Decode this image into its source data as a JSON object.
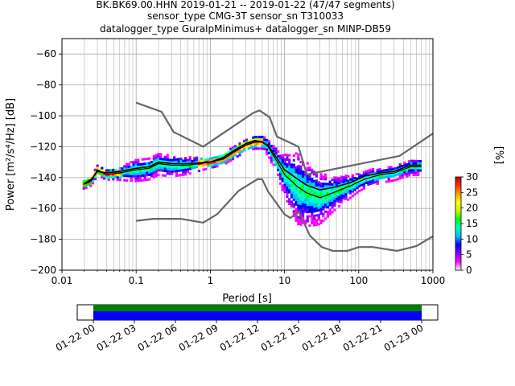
{
  "header": {
    "line1": "BK.BK69.00.HHN   2019-01-21 -- 2019-01-22  (47/47 segments)",
    "line2": "sensor_type CMG-3T sensor_sn T310033",
    "line3": "datalogger_type GuralpMinimus+ datalogger_sn MINP-DB59"
  },
  "chart_data": {
    "type": "heatmap",
    "title": "",
    "xlabel": "Period [s]",
    "ylabel": "Power [m²/s⁴/Hz] [dB]",
    "xscale": "log",
    "xlim": [
      0.01,
      1000
    ],
    "ylim": [
      -200,
      -50
    ],
    "x_ticks": [
      {
        "value": 0.01,
        "label": "0.01"
      },
      {
        "value": 0.1,
        "label": "0.1"
      },
      {
        "value": 1,
        "label": "1"
      },
      {
        "value": 10,
        "label": "10"
      },
      {
        "value": 100,
        "label": "100"
      },
      {
        "value": 1000,
        "label": "1000"
      }
    ],
    "y_ticks": [
      {
        "value": -60,
        "label": "−60"
      },
      {
        "value": -80,
        "label": "−80"
      },
      {
        "value": -100,
        "label": "−100"
      },
      {
        "value": -120,
        "label": "−120"
      },
      {
        "value": -140,
        "label": "−140"
      },
      {
        "value": -160,
        "label": "−160"
      },
      {
        "value": -180,
        "label": "−180"
      },
      {
        "value": -200,
        "label": "−200"
      }
    ],
    "grid": true,
    "noise_models": {
      "color": "#666666",
      "high": [
        [
          0.1,
          -91.5
        ],
        [
          0.22,
          -97.4
        ],
        [
          0.32,
          -110.5
        ],
        [
          0.8,
          -120
        ],
        [
          3.8,
          -98
        ],
        [
          4.6,
          -96.5
        ],
        [
          6.3,
          -101
        ],
        [
          7.9,
          -113.5
        ],
        [
          15.4,
          -120
        ],
        [
          20,
          -138
        ],
        [
          354.8,
          -126
        ],
        [
          1000,
          -111.5
        ]
      ],
      "low": [
        [
          0.1,
          -168
        ],
        [
          0.17,
          -166.7
        ],
        [
          0.4,
          -166.7
        ],
        [
          0.8,
          -169.2
        ],
        [
          1.24,
          -163.7
        ],
        [
          2.4,
          -148.6
        ],
        [
          4.3,
          -141.1
        ],
        [
          5,
          -141.1
        ],
        [
          6,
          -149
        ],
        [
          10,
          -163.8
        ],
        [
          12,
          -166.2
        ],
        [
          15.6,
          -162.1
        ],
        [
          21.9,
          -177.5
        ],
        [
          31.6,
          -185
        ],
        [
          45,
          -187.5
        ],
        [
          70,
          -187.5
        ],
        [
          101,
          -185
        ],
        [
          154,
          -185
        ],
        [
          328,
          -187.5
        ],
        [
          600,
          -184.4
        ],
        [
          1000,
          -178
        ]
      ]
    },
    "mean_curve": {
      "color": "#000000",
      "points": [
        [
          0.02,
          -144
        ],
        [
          0.025,
          -141
        ],
        [
          0.03,
          -136
        ],
        [
          0.04,
          -137
        ],
        [
          0.06,
          -136
        ],
        [
          0.1,
          -134
        ],
        [
          0.15,
          -133
        ],
        [
          0.2,
          -130
        ],
        [
          0.3,
          -131
        ],
        [
          0.5,
          -131
        ],
        [
          1,
          -130
        ],
        [
          1.5,
          -127
        ],
        [
          2,
          -123
        ],
        [
          3,
          -118
        ],
        [
          4,
          -116
        ],
        [
          5,
          -117
        ],
        [
          6,
          -119
        ],
        [
          8,
          -128
        ],
        [
          10,
          -135
        ],
        [
          15,
          -141
        ],
        [
          20,
          -145
        ],
        [
          30,
          -148
        ],
        [
          50,
          -146
        ],
        [
          80,
          -143
        ],
        [
          120,
          -139
        ],
        [
          200,
          -137
        ],
        [
          300,
          -136
        ],
        [
          500,
          -132
        ],
        [
          700,
          -132
        ]
      ]
    },
    "mode_curve": {
      "color": "#000000",
      "points": [
        [
          0.02,
          -144
        ],
        [
          0.025,
          -142
        ],
        [
          0.03,
          -135
        ],
        [
          0.04,
          -138
        ],
        [
          0.06,
          -137
        ],
        [
          0.1,
          -135
        ],
        [
          0.15,
          -134
        ],
        [
          0.2,
          -131
        ],
        [
          0.3,
          -132
        ],
        [
          0.5,
          -132
        ],
        [
          1,
          -130
        ],
        [
          1.5,
          -128
        ],
        [
          2,
          -124
        ],
        [
          3,
          -119
        ],
        [
          4,
          -117
        ],
        [
          5,
          -117
        ],
        [
          6,
          -120
        ],
        [
          8,
          -130
        ],
        [
          10,
          -138
        ],
        [
          15,
          -146
        ],
        [
          20,
          -150
        ],
        [
          30,
          -153
        ],
        [
          50,
          -149
        ],
        [
          80,
          -145
        ],
        [
          120,
          -141
        ],
        [
          200,
          -138
        ],
        [
          300,
          -137
        ],
        [
          500,
          -133
        ],
        [
          700,
          -133
        ]
      ]
    },
    "band_width_db": [
      [
        0.02,
        5
      ],
      [
        0.05,
        6
      ],
      [
        0.1,
        12
      ],
      [
        0.3,
        12
      ],
      [
        1,
        6
      ],
      [
        3,
        7
      ],
      [
        5,
        7
      ],
      [
        8,
        14
      ],
      [
        15,
        40
      ],
      [
        25,
        32
      ],
      [
        50,
        18
      ],
      [
        100,
        10
      ],
      [
        300,
        8
      ],
      [
        700,
        9
      ]
    ],
    "colorbar": {
      "label": "[%]",
      "min": 0,
      "max": 30,
      "ticks": [
        {
          "value": 0,
          "label": "0"
        },
        {
          "value": 5,
          "label": "5"
        },
        {
          "value": 10,
          "label": "10"
        },
        {
          "value": 15,
          "label": "15"
        },
        {
          "value": 20,
          "label": "20"
        },
        {
          "value": 25,
          "label": "25"
        },
        {
          "value": 30,
          "label": "30"
        }
      ],
      "colors": [
        "#ffffff",
        "#ff00ff",
        "#8000ff",
        "#0000ff",
        "#00c0ff",
        "#00ffc0",
        "#00ff00",
        "#c0ff00",
        "#ffff00",
        "#ffa000",
        "#ff3000",
        "#c00000"
      ]
    },
    "coverage": {
      "tick_labels": [
        "01-22 00",
        "01-22 03",
        "01-22 06",
        "01-22 09",
        "01-22 12",
        "01-22 15",
        "01-22 18",
        "01-22 21",
        "01-23 00"
      ],
      "span_hours": [
        0,
        24
      ],
      "top_color": "#008000",
      "bottom_color": "#0000ff"
    }
  }
}
